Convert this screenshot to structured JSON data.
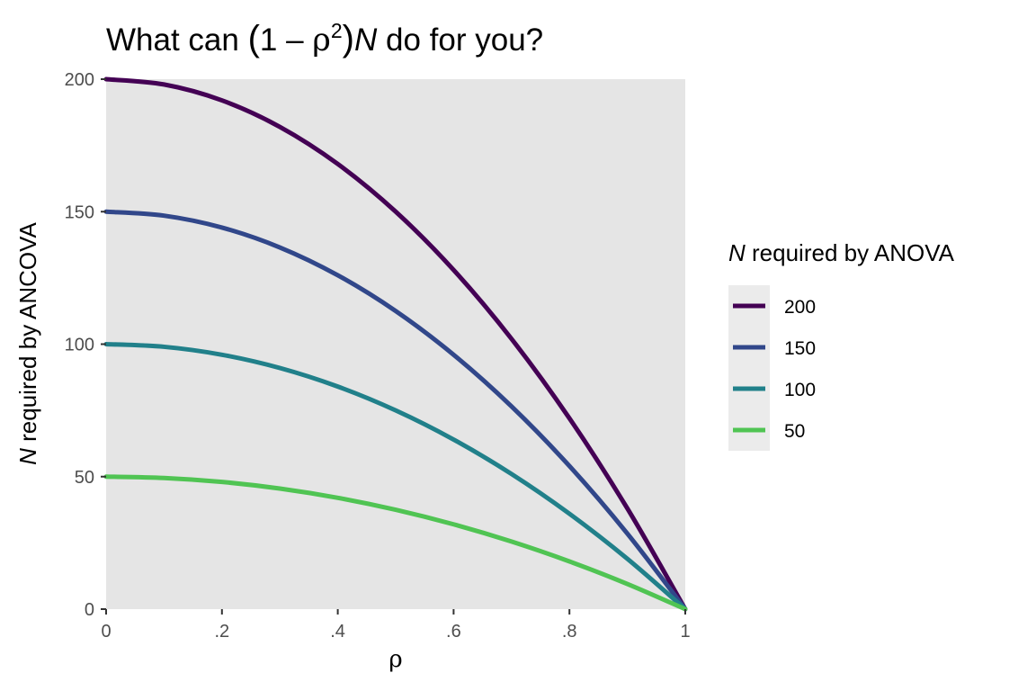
{
  "chart_data": {
    "type": "line",
    "title": {
      "prefix": "What can ",
      "open": "(",
      "one_minus": "1 – ",
      "rho": "ρ",
      "sup": "2",
      "close": ")",
      "n": "N",
      "suffix": " do for you?"
    },
    "xlabel": "ρ",
    "ylabel": {
      "n": "N",
      "rest": " required by ANCOVA"
    },
    "xlim": [
      0,
      1
    ],
    "ylim": [
      0,
      200
    ],
    "x_ticks": [
      0,
      0.2,
      0.4,
      0.6,
      0.8,
      1
    ],
    "x_tick_labels": [
      "0",
      ".2",
      ".4",
      ".6",
      ".8",
      "1"
    ],
    "y_ticks": [
      0,
      50,
      100,
      150,
      200
    ],
    "y_tick_labels": [
      "0",
      "50",
      "100",
      "150",
      "200"
    ],
    "grid": false,
    "legend": {
      "title": {
        "n": "N",
        "rest": " required by ANOVA"
      },
      "placement": "right"
    },
    "x": [
      0,
      0.1,
      0.2,
      0.3,
      0.4,
      0.5,
      0.6,
      0.7,
      0.8,
      0.9,
      1
    ],
    "series": [
      {
        "name": "200",
        "color": "#440154",
        "values": [
          200,
          198,
          192,
          182,
          168,
          150,
          128,
          102,
          72,
          38,
          0
        ]
      },
      {
        "name": "150",
        "color": "#31478a",
        "values": [
          150,
          148.5,
          144,
          136.5,
          126,
          112.5,
          96,
          76.5,
          54,
          28.5,
          0
        ]
      },
      {
        "name": "100",
        "color": "#21808a",
        "values": [
          100,
          99,
          96,
          91,
          84,
          75,
          64,
          51,
          36,
          19,
          0
        ]
      },
      {
        "name": "50",
        "color": "#50c453",
        "values": [
          50,
          49.5,
          48,
          45.5,
          42,
          37.5,
          32,
          25.5,
          18,
          9.5,
          0
        ]
      }
    ],
    "panel_color": "#e5e5e5",
    "legend_key_color": "#ebebeb"
  }
}
